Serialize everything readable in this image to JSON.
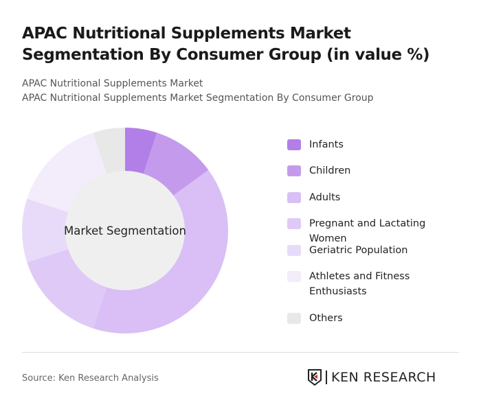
{
  "header": {
    "title": "APAC Nutritional Supplements Market Segmentation By Consumer Group (in value %)",
    "subtitle1": "APAC Nutritional Supplements Market",
    "subtitle2": "APAC Nutritional Supplements Market Segmentation By Consumer Group"
  },
  "chart_data": {
    "type": "pie",
    "donut": true,
    "center_label": "Market Segmentation",
    "legend_position": "right",
    "categories": [
      "Infants",
      "Children",
      "Adults",
      "Pregnant and Lactating Women",
      "Geriatric Population",
      "Athletes and Fitness Enthusiasts",
      "Others"
    ],
    "values": [
      5,
      10,
      40,
      15,
      10,
      15,
      5
    ],
    "colors": [
      "#b27fe8",
      "#c49bec",
      "#d9bff5",
      "#dfc9f6",
      "#e8dbf9",
      "#f2ecfb",
      "#e8e8e8"
    ]
  },
  "legend": {
    "items": [
      {
        "label": "Infants"
      },
      {
        "label": "Children"
      },
      {
        "label": "Adults"
      },
      {
        "label": "Pregnant and Lactating Women"
      },
      {
        "label": "Geriatric Population"
      },
      {
        "label": "Athletes and Fitness\nEnthusiasts"
      },
      {
        "label": "Others"
      }
    ]
  },
  "footer": {
    "source": "Source: Ken Research Analysis",
    "logo": "KEN RESEARCH"
  }
}
